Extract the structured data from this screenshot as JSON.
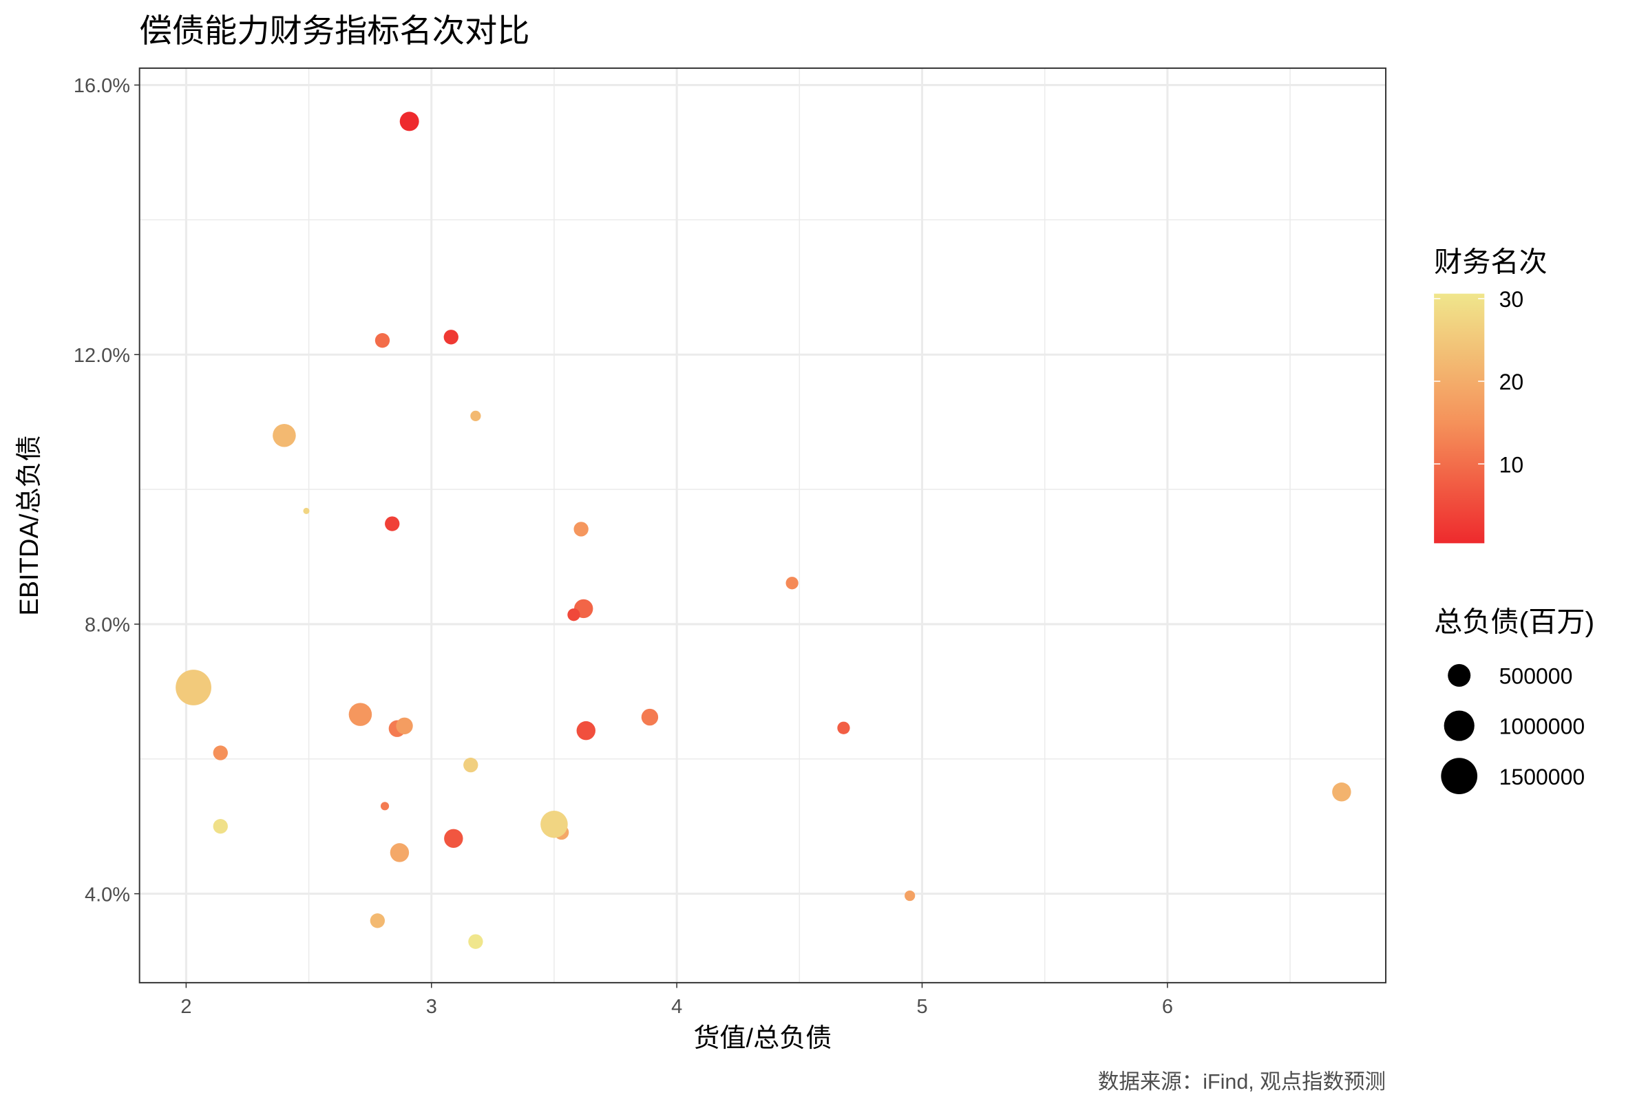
{
  "chart_data": {
    "type": "scatter",
    "title": "偿债能力财务指标名次对比",
    "xlabel": "货值/总负债",
    "ylabel": "EBITDA/总负债",
    "caption": "数据来源：iFind, 观点指数预测",
    "xlim": [
      1.81,
      6.89
    ],
    "ylim": [
      2.68,
      16.25
    ],
    "x_ticks": [
      2,
      3,
      4,
      5,
      6
    ],
    "x_tick_labels": [
      "2",
      "3",
      "4",
      "5",
      "6"
    ],
    "y_ticks": [
      4,
      8,
      12,
      16
    ],
    "y_tick_labels": [
      "4.0%",
      "8.0%",
      "12.0%",
      "16.0%"
    ],
    "grid": true,
    "legend_placement": "right",
    "color_legend": {
      "title": "财务名次",
      "ticks": [
        10,
        20,
        30
      ],
      "tick_labels": [
        "10",
        "20",
        "30"
      ],
      "range": [
        1,
        30
      ],
      "low_color": "#EE2A2D",
      "mid_color": "#F5915A",
      "high_color": "#F0E68C"
    },
    "size_legend": {
      "title": "总负债(百万)",
      "values": [
        500000,
        1000000,
        1500000
      ],
      "labels": [
        "500000",
        "1000000",
        "1500000"
      ]
    },
    "points": [
      {
        "x": 2.91,
        "y": 15.46,
        "size": 330000,
        "rank": 1
      },
      {
        "x": 2.8,
        "y": 12.21,
        "size": 160000,
        "rank": 10
      },
      {
        "x": 3.08,
        "y": 12.26,
        "size": 160000,
        "rank": 3
      },
      {
        "x": 3.18,
        "y": 11.09,
        "size": 57600,
        "rank": 22
      },
      {
        "x": 2.4,
        "y": 10.8,
        "size": 518000,
        "rank": 22
      },
      {
        "x": 2.49,
        "y": 9.68,
        "size": 6400,
        "rank": 27
      },
      {
        "x": 2.84,
        "y": 9.49,
        "size": 160000,
        "rank": 4
      },
      {
        "x": 3.61,
        "y": 9.41,
        "size": 160000,
        "rank": 16
      },
      {
        "x": 4.47,
        "y": 8.61,
        "size": 102000,
        "rank": 14
      },
      {
        "x": 3.62,
        "y": 8.23,
        "size": 314000,
        "rank": 9
      },
      {
        "x": 3.58,
        "y": 8.14,
        "size": 102000,
        "rank": 5
      },
      {
        "x": 2.03,
        "y": 7.06,
        "size": 1440000,
        "rank": 25
      },
      {
        "x": 2.71,
        "y": 6.66,
        "size": 518000,
        "rank": 16
      },
      {
        "x": 2.86,
        "y": 6.45,
        "size": 230000,
        "rank": 12
      },
      {
        "x": 2.89,
        "y": 6.49,
        "size": 230000,
        "rank": 17
      },
      {
        "x": 3.63,
        "y": 6.42,
        "size": 314000,
        "rank": 6
      },
      {
        "x": 3.89,
        "y": 6.62,
        "size": 230000,
        "rank": 12
      },
      {
        "x": 4.68,
        "y": 6.46,
        "size": 102000,
        "rank": 8
      },
      {
        "x": 2.14,
        "y": 6.09,
        "size": 160000,
        "rank": 15
      },
      {
        "x": 3.16,
        "y": 5.91,
        "size": 160000,
        "rank": 26
      },
      {
        "x": 2.81,
        "y": 5.3,
        "size": 25600,
        "rank": 12
      },
      {
        "x": 2.14,
        "y": 5.0,
        "size": 160000,
        "rank": 29
      },
      {
        "x": 3.53,
        "y": 4.91,
        "size": 160000,
        "rank": 19
      },
      {
        "x": 3.5,
        "y": 5.03,
        "size": 774000,
        "rank": 27
      },
      {
        "x": 3.09,
        "y": 4.82,
        "size": 314000,
        "rank": 7
      },
      {
        "x": 2.87,
        "y": 4.61,
        "size": 314000,
        "rank": 19
      },
      {
        "x": 6.71,
        "y": 5.51,
        "size": 314000,
        "rank": 21
      },
      {
        "x": 4.95,
        "y": 3.97,
        "size": 57600,
        "rank": 18
      },
      {
        "x": 2.78,
        "y": 3.6,
        "size": 160000,
        "rank": 22
      },
      {
        "x": 3.18,
        "y": 3.29,
        "size": 160000,
        "rank": 30
      }
    ]
  }
}
